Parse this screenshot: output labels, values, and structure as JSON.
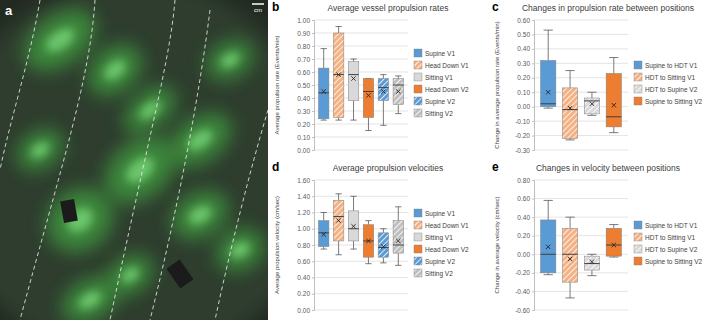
{
  "image_panel": {
    "panel_label": "a",
    "scale_label": "cm"
  },
  "chart_data": [
    {
      "type": "box",
      "panel_label": "b",
      "title": "Average vessel propulsion rates",
      "y_label": "Average propulsion rate (Events/min)",
      "ylim": [
        0,
        1
      ],
      "yticks": [
        {
          "value": 0,
          "label": "0.00"
        },
        {
          "value": 0.1,
          "label": "0.10"
        },
        {
          "value": 0.2,
          "label": "0.20"
        },
        {
          "value": 0.3,
          "label": "0.30"
        },
        {
          "value": 0.4,
          "label": "0.40"
        },
        {
          "value": 0.5,
          "label": "0.50"
        },
        {
          "value": 0.6,
          "label": "0.60"
        },
        {
          "value": 0.7,
          "label": "0.70"
        },
        {
          "value": 0.8,
          "label": "0.80"
        },
        {
          "value": 0.9,
          "label": "0.90"
        },
        {
          "value": 1,
          "label": "1.00"
        }
      ],
      "grid": true,
      "tick_labels": "y",
      "legend": "right",
      "series": [
        {
          "name": "Supine V1",
          "color": "#5b9bd5",
          "min": 0.23,
          "q1": 0.24,
          "median": 0.44,
          "q3": 0.63,
          "max": 0.78,
          "mean": 0.45
        },
        {
          "name": "Head Down V1",
          "color": "#f4b183",
          "min": 0.23,
          "q1": 0.25,
          "median": 0.58,
          "q3": 0.9,
          "max": 0.95,
          "mean": 0.58
        },
        {
          "name": "Sitting V1",
          "color": "#d9d9d9",
          "min": 0.23,
          "q1": 0.38,
          "median": 0.58,
          "q3": 0.68,
          "max": 0.7,
          "mean": 0.55
        },
        {
          "name": "Head Down V2",
          "color": "#ed7d31",
          "min": 0.15,
          "q1": 0.25,
          "median": 0.45,
          "q3": 0.55,
          "max": 0.55,
          "mean": 0.42
        },
        {
          "name": "Supine V2",
          "color": "#5b9bd5",
          "min": 0.19,
          "q1": 0.38,
          "median": 0.48,
          "q3": 0.55,
          "max": 0.58,
          "mean": 0.45
        },
        {
          "name": "Sitting V2",
          "color": "#bfbfbf",
          "min": 0.28,
          "q1": 0.35,
          "median": 0.5,
          "q3": 0.55,
          "max": 0.57,
          "mean": 0.45
        }
      ]
    },
    {
      "type": "box",
      "panel_label": "c",
      "title": "Changes in propulsion rate between positions",
      "y_label": "Change in average propulsion rate (Events/min)",
      "ylim": [
        -0.3,
        0.6
      ],
      "yticks": [
        {
          "value": -0.3,
          "label": "-0.30"
        },
        {
          "value": -0.2,
          "label": "-0.20"
        },
        {
          "value": -0.1,
          "label": "-0.10"
        },
        {
          "value": 0,
          "label": "0.00"
        },
        {
          "value": 0.1,
          "label": "0.10"
        },
        {
          "value": 0.2,
          "label": "0.20"
        },
        {
          "value": 0.3,
          "label": "0.30"
        },
        {
          "value": 0.4,
          "label": "0.40"
        },
        {
          "value": 0.5,
          "label": "0.50"
        },
        {
          "value": 0.6,
          "label": "0.60"
        }
      ],
      "grid": true,
      "tick_labels": "y",
      "legend": "right",
      "series": [
        {
          "name": "Supine to HDT V1",
          "color": "#5b9bd5",
          "min": -0.01,
          "q1": 0.0,
          "median": 0.02,
          "q3": 0.32,
          "max": 0.53,
          "mean": 0.1
        },
        {
          "name": "HDT to Sitting V1",
          "color": "#f4b183",
          "min": -0.23,
          "q1": -0.22,
          "median": -0.02,
          "q3": 0.13,
          "max": 0.25,
          "mean": -0.01
        },
        {
          "name": "HDT to Supine V2",
          "color": "#d9d9d9",
          "min": -0.06,
          "q1": -0.05,
          "median": 0.04,
          "q3": 0.06,
          "max": 0.1,
          "mean": 0.02
        },
        {
          "name": "Supine to Sitting V2",
          "color": "#ed7d31",
          "min": -0.18,
          "q1": -0.14,
          "median": -0.07,
          "q3": 0.23,
          "max": 0.34,
          "mean": 0.01
        }
      ]
    },
    {
      "type": "box",
      "panel_label": "d",
      "title": "Average propulsion velocities",
      "y_label": "Average propulsion velocity (cm/sec)",
      "ylim": [
        0,
        1.6
      ],
      "yticks": [
        {
          "value": 0,
          "label": "0.00"
        },
        {
          "value": 0.2,
          "label": "0.20"
        },
        {
          "value": 0.4,
          "label": "0.40"
        },
        {
          "value": 0.6,
          "label": "0.60"
        },
        {
          "value": 0.8,
          "label": "0.80"
        },
        {
          "value": 1,
          "label": "1.00"
        },
        {
          "value": 1.2,
          "label": "1.20"
        },
        {
          "value": 1.4,
          "label": "1.40"
        },
        {
          "value": 1.6,
          "label": "1.60"
        }
      ],
      "grid": true,
      "tick_labels": "y",
      "legend": "right",
      "series": [
        {
          "name": "Supine V1",
          "color": "#5b9bd5",
          "min": 0.75,
          "q1": 0.78,
          "median": 0.95,
          "q3": 1.1,
          "max": 1.2,
          "mean": 0.93
        },
        {
          "name": "Head Down V1",
          "color": "#f4b183",
          "min": 0.68,
          "q1": 0.85,
          "median": 1.15,
          "q3": 1.35,
          "max": 1.43,
          "mean": 1.1
        },
        {
          "name": "Sitting V1",
          "color": "#d9d9d9",
          "min": 0.75,
          "q1": 0.85,
          "median": 1.0,
          "q3": 1.22,
          "max": 1.4,
          "mean": 1.03
        },
        {
          "name": "Head Down V2",
          "color": "#ed7d31",
          "min": 0.57,
          "q1": 0.65,
          "median": 0.85,
          "q3": 1.05,
          "max": 1.1,
          "mean": 0.85
        },
        {
          "name": "Supine V2",
          "color": "#5b9bd5",
          "min": 0.58,
          "q1": 0.65,
          "median": 0.77,
          "q3": 0.95,
          "max": 1.0,
          "mean": 0.78
        },
        {
          "name": "Sitting V2",
          "color": "#bfbfbf",
          "min": 0.55,
          "q1": 0.7,
          "median": 0.8,
          "q3": 1.1,
          "max": 1.27,
          "mean": 0.85
        }
      ]
    },
    {
      "type": "box",
      "panel_label": "e",
      "title": "Changes in velocity between positions",
      "y_label": "Change in average velocity (cm/sec)",
      "ylim": [
        -0.6,
        0.8
      ],
      "yticks": [
        {
          "value": -0.6,
          "label": "-0.60"
        },
        {
          "value": -0.4,
          "label": "-0.40"
        },
        {
          "value": -0.2,
          "label": "-0.20"
        },
        {
          "value": 0,
          "label": "0.00"
        },
        {
          "value": 0.2,
          "label": "0.20"
        },
        {
          "value": 0.4,
          "label": "0.40"
        },
        {
          "value": 0.6,
          "label": "0.60"
        },
        {
          "value": 0.8,
          "label": "0.80"
        }
      ],
      "grid": true,
      "tick_labels": "y",
      "legend": "right",
      "series": [
        {
          "name": "Supine to HDT V1",
          "color": "#5b9bd5",
          "min": -0.22,
          "q1": -0.2,
          "median": 0.0,
          "q3": 0.37,
          "max": 0.58,
          "mean": 0.08
        },
        {
          "name": "HDT to Sitting V1",
          "color": "#f4b183",
          "min": -0.47,
          "q1": -0.3,
          "median": 0.0,
          "q3": 0.28,
          "max": 0.4,
          "mean": -0.05
        },
        {
          "name": "HDT to Supine V2",
          "color": "#d9d9d9",
          "min": -0.23,
          "q1": -0.17,
          "median": -0.1,
          "q3": -0.02,
          "max": 0.0,
          "mean": -0.08
        },
        {
          "name": "Supine to Sitting V2",
          "color": "#ed7d31",
          "min": -0.03,
          "q1": -0.02,
          "median": 0.1,
          "q3": 0.28,
          "max": 0.32,
          "mean": 0.1
        }
      ]
    }
  ]
}
